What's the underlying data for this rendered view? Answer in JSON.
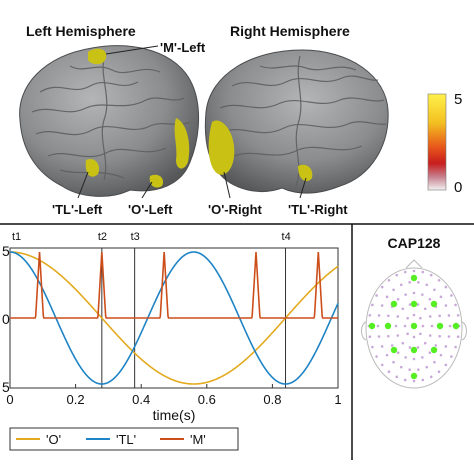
{
  "brain": {
    "left_title": "Left Hemisphere",
    "right_title": "Right Hemisphere",
    "labels": {
      "m_left": "'M'-Left",
      "tl_left": "'TL'-Left",
      "o_left": "'O'-Left",
      "o_right": "'O'-Right",
      "tl_right": "'TL'-Right"
    },
    "colorbar": {
      "max_label": "5",
      "min_label": "0",
      "range": [
        0,
        5
      ]
    },
    "colors": {
      "cortex": "#8a8c8e",
      "highlight": "#c9c214"
    }
  },
  "chart_data": {
    "type": "line",
    "xlabel": "time(s)",
    "xlim": [
      0,
      1
    ],
    "xticks": [
      "0",
      "0.2",
      "0.4",
      "0.6",
      "0.8",
      "1"
    ],
    "y_edge_labels": {
      "top": "5",
      "middle": "0",
      "bottom": "5"
    },
    "time_markers": [
      {
        "label": "t1",
        "x": 0
      },
      {
        "label": "t2",
        "x": 0.28
      },
      {
        "label": "t3",
        "x": 0.38
      },
      {
        "label": "t4",
        "x": 0.84
      }
    ],
    "series": [
      {
        "name": "'O'",
        "color": "#e3aa1f",
        "kind": "cosine",
        "period": 1.12,
        "amplitude": 1
      },
      {
        "name": "'TL'",
        "color": "#1f84c5",
        "kind": "cosine",
        "period": 0.56,
        "amplitude": 1
      },
      {
        "name": "'M'",
        "color": "#cc4e1b",
        "kind": "spikes",
        "peaks": [
          0.09,
          0.28,
          0.47,
          0.75,
          0.94
        ],
        "amplitude": 1
      }
    ]
  },
  "cap": {
    "title": "CAP128",
    "colors": {
      "highlight": "#55ee22",
      "sensor": "#c9a8d8"
    }
  }
}
